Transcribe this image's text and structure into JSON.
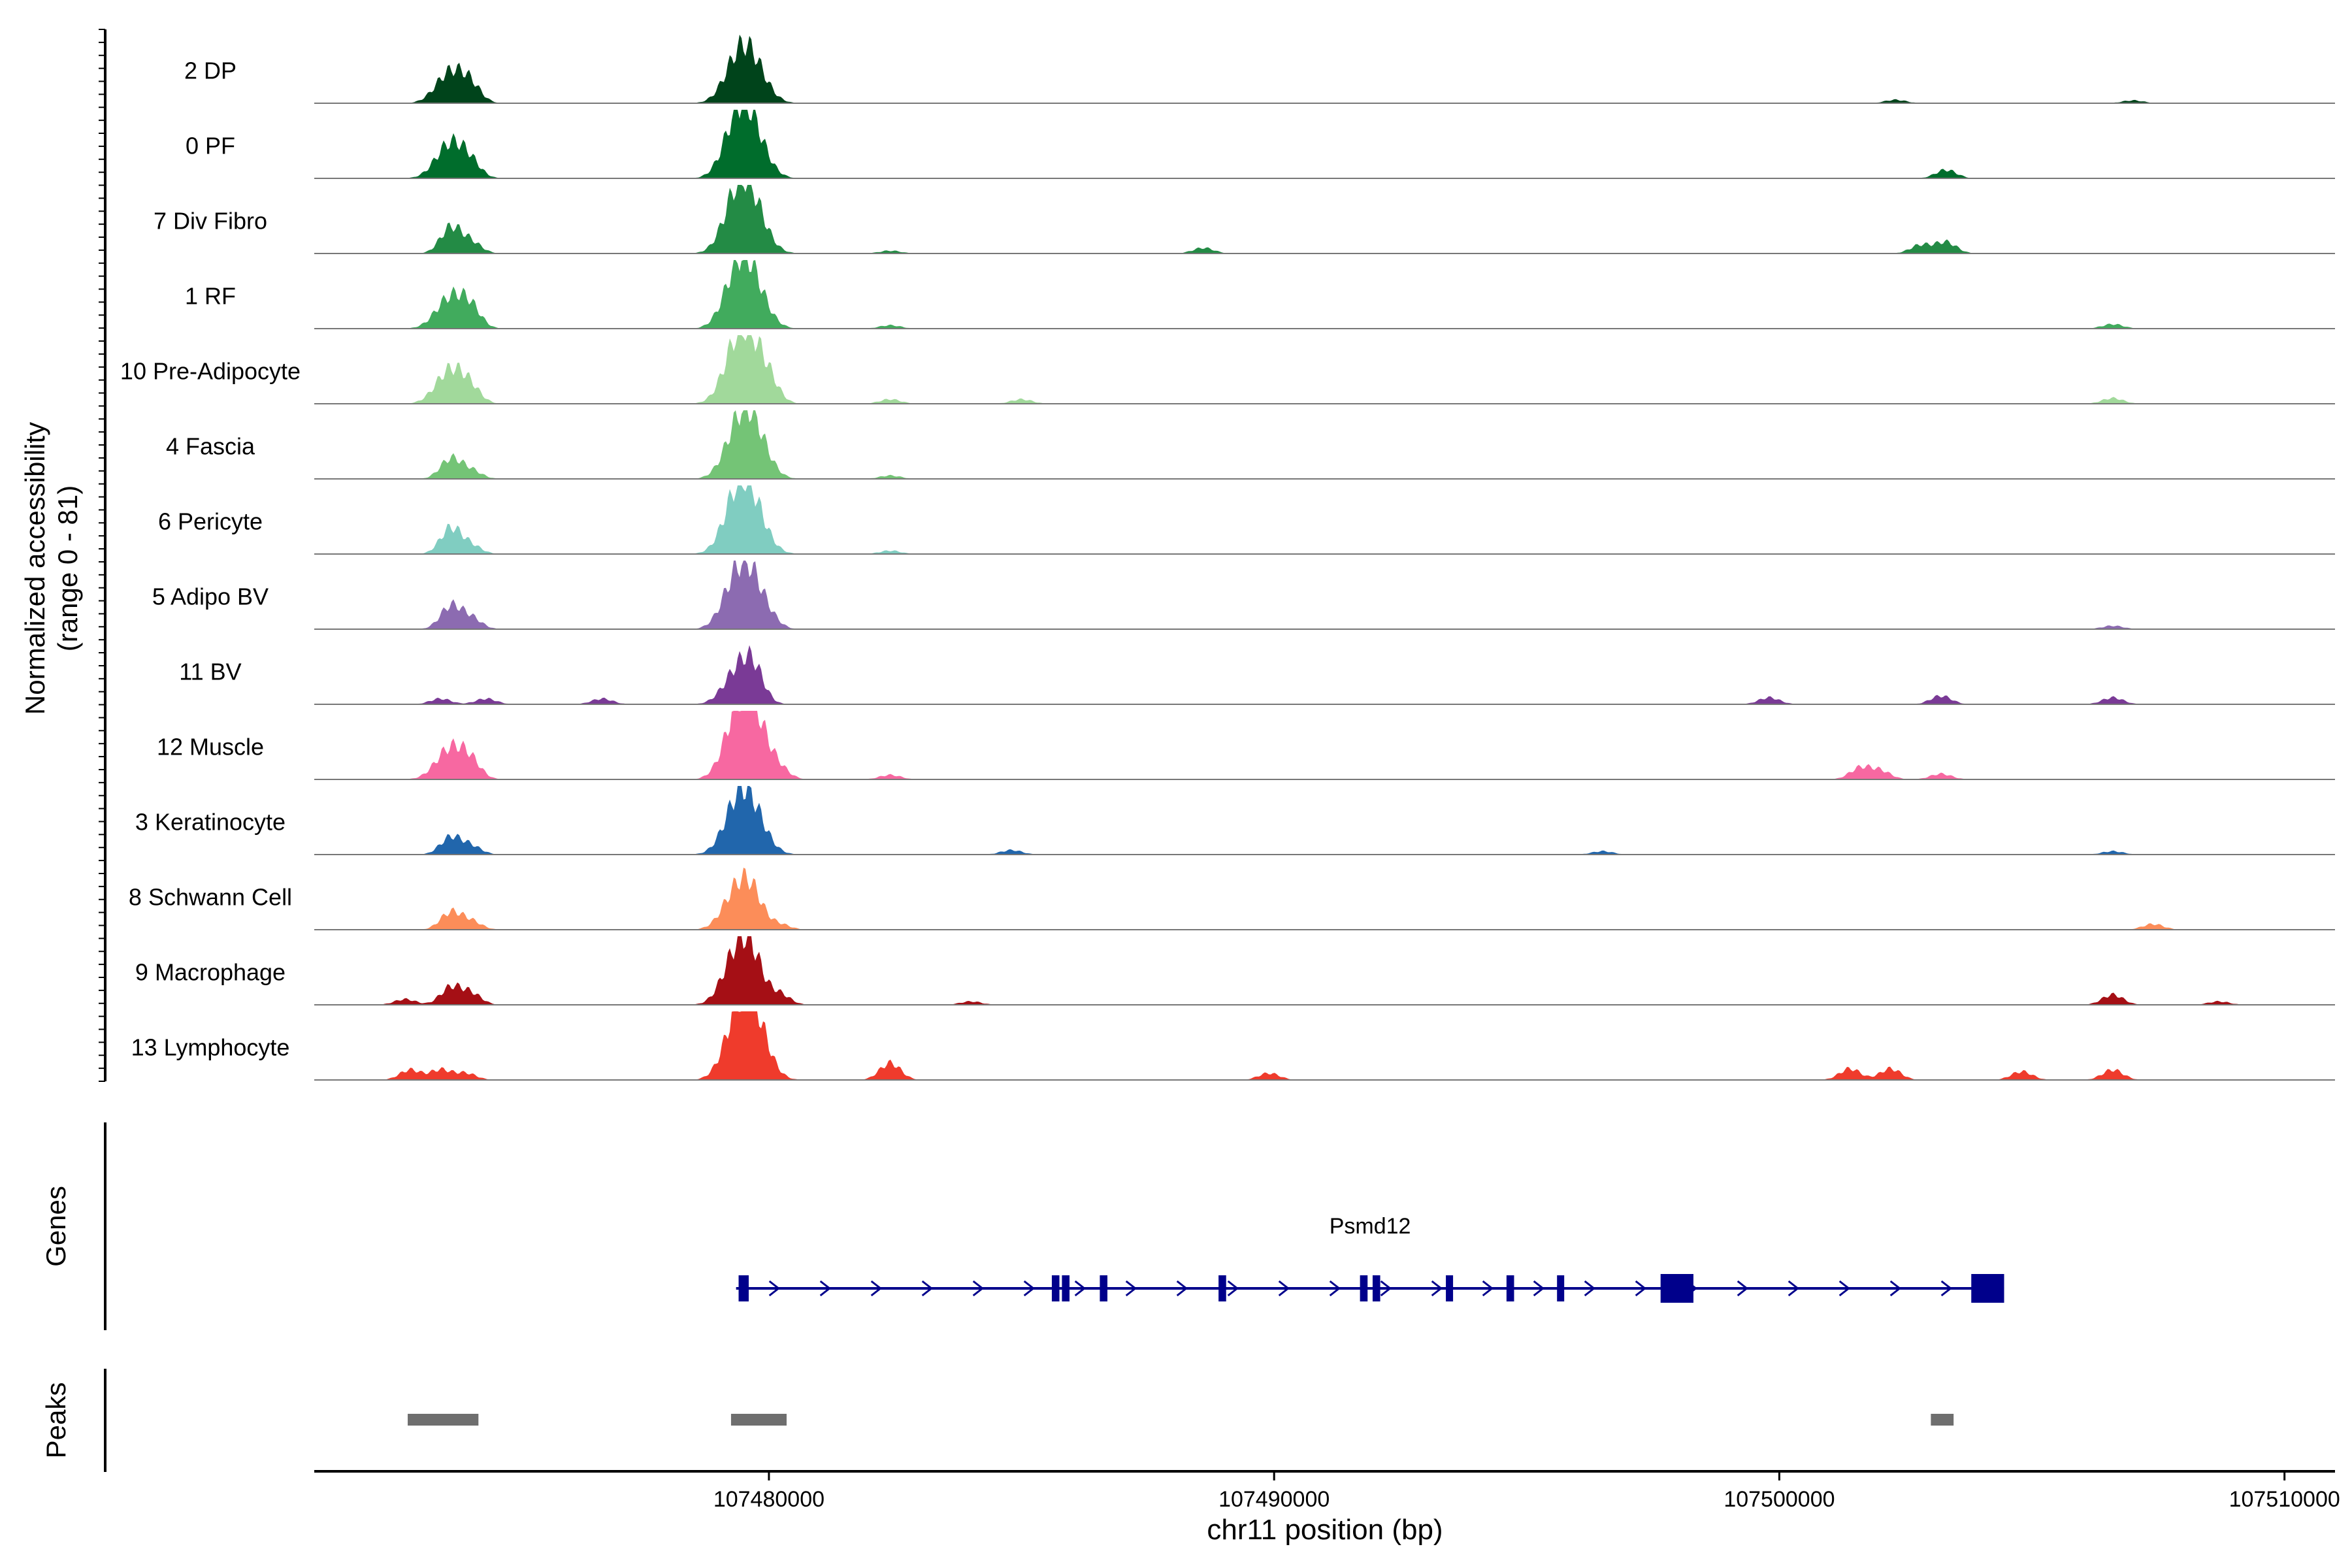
{
  "chart_data": [
    {
      "type": "area",
      "panel": "coverage",
      "ylabel_line1": "Normalized accessibility",
      "ylabel_line2": "(range 0 - 81)",
      "xlim": [
        107471000,
        107511000
      ],
      "ylim": [
        0,
        81
      ],
      "tracks": [
        {
          "name": "2 DP",
          "color": "#00441b",
          "peaks": [
            [
              107473700,
              0.55
            ],
            [
              107474100,
              0.25
            ],
            [
              107479400,
              0.7
            ],
            [
              107479700,
              0.5
            ],
            [
              107502300,
              0.06
            ],
            [
              107507000,
              0.05
            ]
          ]
        },
        {
          "name": "0 PF",
          "color": "#006d2c",
          "peaks": [
            [
              107473700,
              0.62
            ],
            [
              107474100,
              0.2
            ],
            [
              107479400,
              1.0
            ],
            [
              107479700,
              0.55
            ],
            [
              107503300,
              0.15
            ]
          ]
        },
        {
          "name": "7 Div Fibro",
          "color": "#238b45",
          "peaks": [
            [
              107473700,
              0.45
            ],
            [
              107474100,
              0.2
            ],
            [
              107479400,
              1.0
            ],
            [
              107479700,
              0.55
            ],
            [
              107482400,
              0.05
            ],
            [
              107488600,
              0.1
            ],
            [
              107502800,
              0.15
            ],
            [
              107503300,
              0.2
            ]
          ]
        },
        {
          "name": "1 RF",
          "color": "#41ab5d",
          "peaks": [
            [
              107473700,
              0.55
            ],
            [
              107474100,
              0.3
            ],
            [
              107479400,
              0.95
            ],
            [
              107479700,
              0.55
            ],
            [
              107482400,
              0.06
            ],
            [
              107506600,
              0.08
            ]
          ]
        },
        {
          "name": "10 Pre-Adipocyte",
          "color": "#a1d99b",
          "peaks": [
            [
              107473700,
              0.6
            ],
            [
              107474100,
              0.2
            ],
            [
              107479400,
              1.0
            ],
            [
              107479700,
              0.55
            ],
            [
              107480000,
              0.25
            ],
            [
              107482400,
              0.08
            ],
            [
              107485000,
              0.08
            ],
            [
              107506600,
              0.1
            ]
          ]
        },
        {
          "name": "4 Fascia",
          "color": "#74c476",
          "peaks": [
            [
              107473700,
              0.35
            ],
            [
              107474100,
              0.15
            ],
            [
              107479400,
              0.75
            ],
            [
              107479700,
              0.72
            ],
            [
              107482400,
              0.06
            ]
          ]
        },
        {
          "name": "6 Pericyte",
          "color": "#80cdc1",
          "peaks": [
            [
              107473700,
              0.45
            ],
            [
              107474100,
              0.15
            ],
            [
              107479400,
              1.0
            ],
            [
              107479700,
              0.55
            ],
            [
              107482400,
              0.06
            ]
          ]
        },
        {
          "name": "5 Adipo BV",
          "color": "#8c6bb1",
          "peaks": [
            [
              107473700,
              0.4
            ],
            [
              107474100,
              0.2
            ],
            [
              107479400,
              1.0
            ],
            [
              107479700,
              0.4
            ],
            [
              107480000,
              0.2
            ],
            [
              107506600,
              0.06
            ]
          ]
        },
        {
          "name": "11 BV",
          "color": "#7a3a96",
          "peaks": [
            [
              107473500,
              0.1
            ],
            [
              107474400,
              0.1
            ],
            [
              107476700,
              0.1
            ],
            [
              107479400,
              0.6
            ],
            [
              107479700,
              0.45
            ],
            [
              107499800,
              0.12
            ],
            [
              107503200,
              0.15
            ],
            [
              107506600,
              0.12
            ]
          ]
        },
        {
          "name": "12 Muscle",
          "color": "#f768a1",
          "peaks": [
            [
              107473700,
              0.55
            ],
            [
              107474100,
              0.25
            ],
            [
              107479400,
              1.0
            ],
            [
              107479700,
              0.85
            ],
            [
              107480200,
              0.15
            ],
            [
              107482400,
              0.08
            ],
            [
              107501600,
              0.2
            ],
            [
              107502000,
              0.15
            ],
            [
              107503200,
              0.1
            ]
          ]
        },
        {
          "name": "3 Keratinocyte",
          "color": "#2166ac",
          "peaks": [
            [
              107473700,
              0.3
            ],
            [
              107474100,
              0.15
            ],
            [
              107479400,
              0.85
            ],
            [
              107479700,
              0.5
            ],
            [
              107484800,
              0.08
            ],
            [
              107496500,
              0.06
            ],
            [
              107506600,
              0.06
            ]
          ]
        },
        {
          "name": "8 Schwann Cell",
          "color": "#fc8d59",
          "peaks": [
            [
              107473700,
              0.3
            ],
            [
              107474100,
              0.15
            ],
            [
              107479400,
              0.75
            ],
            [
              107479700,
              0.35
            ],
            [
              107480200,
              0.1
            ],
            [
              107507400,
              0.1
            ]
          ]
        },
        {
          "name": "9 Macrophage",
          "color": "#a50f15",
          "peaks": [
            [
              107472800,
              0.1
            ],
            [
              107473700,
              0.3
            ],
            [
              107474100,
              0.2
            ],
            [
              107479400,
              1.0
            ],
            [
              107479700,
              0.45
            ],
            [
              107480200,
              0.2
            ],
            [
              107484000,
              0.06
            ],
            [
              107506600,
              0.18
            ],
            [
              107508700,
              0.06
            ]
          ]
        },
        {
          "name": "13 Lymphocyte",
          "color": "#ef3b2c",
          "peaks": [
            [
              107472900,
              0.18
            ],
            [
              107473500,
              0.18
            ],
            [
              107474000,
              0.12
            ],
            [
              107479400,
              0.95
            ],
            [
              107479700,
              0.9
            ],
            [
              107482400,
              0.3
            ],
            [
              107489900,
              0.12
            ],
            [
              107501400,
              0.2
            ],
            [
              107502200,
              0.2
            ],
            [
              107504800,
              0.15
            ],
            [
              107506600,
              0.18
            ]
          ]
        }
      ]
    },
    {
      "type": "gene-track",
      "panel": "genes",
      "ylabel": "Genes",
      "gene": {
        "name": "Psmd12",
        "strand": "+",
        "start": 107479350,
        "end": 107504450
      },
      "exons": [
        [
          107479400,
          107479600
        ],
        [
          107485600,
          107485750
        ],
        [
          107485800,
          107485950
        ],
        [
          107486550,
          107486700
        ],
        [
          107488900,
          107489050
        ],
        [
          107491700,
          107491850
        ],
        [
          107491950,
          107492100
        ],
        [
          107493400,
          107493500
        ],
        [
          107494600,
          107494750
        ],
        [
          107495600,
          107495700
        ],
        [
          107497650,
          107498300
        ],
        [
          107503800,
          107504450
        ]
      ]
    },
    {
      "type": "range-track",
      "panel": "peaks",
      "ylabel": "Peaks",
      "ranges": [
        [
          107472850,
          107474250
        ],
        [
          107479250,
          107480350
        ],
        [
          107503000,
          107503450
        ]
      ],
      "color": "#6e6e6e"
    }
  ],
  "axis": {
    "xlabel": "chr11 position (bp)",
    "ticks": [
      107480000,
      107490000,
      107500000,
      107510000
    ],
    "tick_labels": [
      "107480000",
      "107490000",
      "107500000",
      "107510000"
    ]
  }
}
